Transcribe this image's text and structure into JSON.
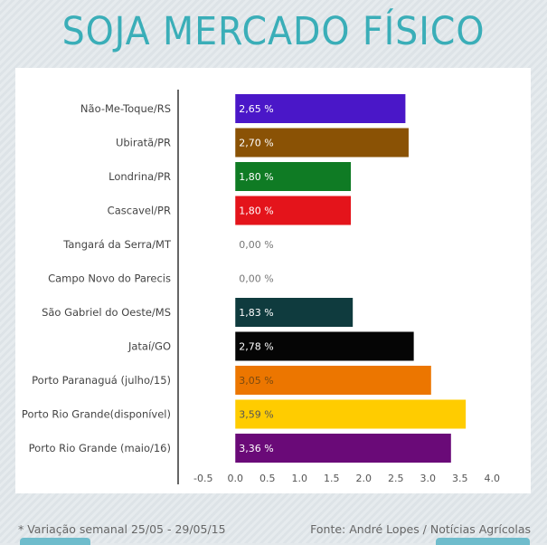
{
  "title": "SOJA MERCADO FÍSICO",
  "footnote": "* Variação semanal 25/05 - 29/05/15",
  "source": "Fonte: André Lopes / Notícias Agrícolas",
  "chart_data": {
    "type": "bar",
    "orientation": "horizontal",
    "categories": [
      "Não-Me-Toque/RS",
      "Ubiratã/PR",
      "Londrina/PR",
      "Cascavel/PR",
      "Tangará da Serra/MT",
      "Campo Novo do Parecis",
      "São Gabriel do Oeste/MS",
      "Jataí/GO",
      "Porto Paranaguá (julho/15)",
      "Porto Rio Grande(disponível)",
      "Porto Rio Grande (maio/16)"
    ],
    "values": [
      2.65,
      2.7,
      1.8,
      1.8,
      0.0,
      0.0,
      1.83,
      2.78,
      3.05,
      3.59,
      3.36
    ],
    "value_labels": [
      "2,65 %",
      "2,70 %",
      "1,80 %",
      "1,80 %",
      "0,00 %",
      "0,00 %",
      "1,83 %",
      "2,78 %",
      "3,05 %",
      "3,59 %",
      "3,36 %"
    ],
    "colors": [
      "#4a17c8",
      "#8a5205",
      "#0f7b24",
      "#e4141b",
      "#ffffff",
      "#ffffff",
      "#0f3b3e",
      "#050505",
      "#ec7600",
      "#ffcc00",
      "#6a0a78"
    ],
    "label_colors": [
      "#ffffff",
      "#ffffff",
      "#ffffff",
      "#ffffff",
      "#777777",
      "#777777",
      "#ffffff",
      "#ffffff",
      "#7a4a10",
      "#555555",
      "#ffffff"
    ],
    "xticks": [
      "-0.5",
      "0.0",
      "0.5",
      "1.0",
      "1.5",
      "2.0",
      "2.5",
      "3.0",
      "3.5",
      "4.0"
    ],
    "xlim": [
      -0.75,
      4.25
    ]
  }
}
